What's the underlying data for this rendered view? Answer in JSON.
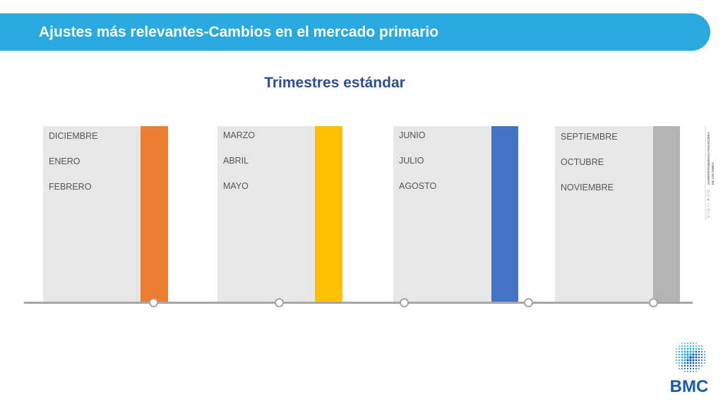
{
  "header": {
    "title": "Ajustes más relevantes-Cambios en el mercado primario"
  },
  "subtitle": "Trimestres estándar",
  "quarters": [
    {
      "months": [
        "DICIEMBRE",
        "ENERO",
        "FEBRERO"
      ],
      "color": "#ed7d31"
    },
    {
      "months": [
        "MARZO",
        "ABRIL",
        "MAYO"
      ],
      "color": "#ffc000"
    },
    {
      "months": [
        "JUNIO",
        "JULIO",
        "AGOSTO"
      ],
      "color": "#4472c4"
    },
    {
      "months": [
        "SEPTIEMBRE",
        "OCTUBRE",
        "NOVIEMBRE"
      ],
      "color": "#a6a6a6"
    }
  ],
  "watermark": {
    "vigilado": "VIGILADO",
    "line1": "SUPERINTENDENCIA FINANCIERA",
    "line2": "DE COLOMBIA"
  },
  "logo": {
    "text": "BMC",
    "color": "#1a5aa8"
  },
  "colors": {
    "header": "#29a9e0",
    "subtitle": "#2d4e8f",
    "timeline": "#a6a6a6"
  }
}
